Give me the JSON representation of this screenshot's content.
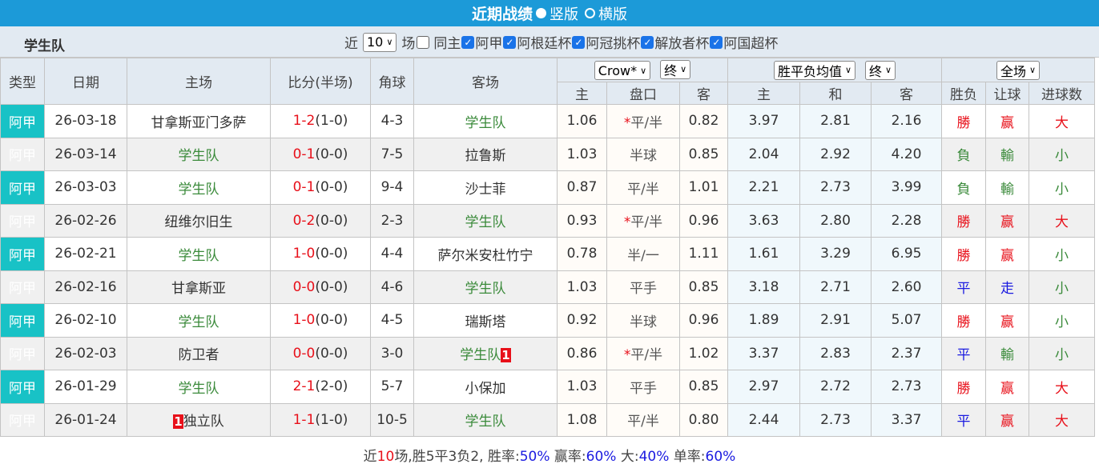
{
  "title": "近期战绩",
  "view_options": [
    "竖版",
    "横版"
  ],
  "view_selected": "竖版",
  "team": "学生队",
  "filter": {
    "near_label": "近",
    "count": "10",
    "games_label": "场",
    "same_home_label": "同主",
    "same_home_checked": false,
    "leagues": [
      {
        "label": "阿甲",
        "checked": true
      },
      {
        "label": "阿根廷杯",
        "checked": true
      },
      {
        "label": "阿冠挑杯",
        "checked": true
      },
      {
        "label": "解放者杯",
        "checked": true
      },
      {
        "label": "阿国超杯",
        "checked": true
      }
    ]
  },
  "headers": {
    "type": "类型",
    "date": "日期",
    "home": "主场",
    "score": "比分(半场)",
    "corner": "角球",
    "away": "客场",
    "ah_company": "Crow*",
    "ah_stage": "终",
    "ox_type": "胜平负均值",
    "ox_stage": "终",
    "result_scope": "全场",
    "ah_home": "主",
    "ah_line": "盘口",
    "ah_away": "客",
    "ox_home": "主",
    "ox_draw": "和",
    "ox_away": "客",
    "wl": "胜负",
    "handicap": "让球",
    "goals": "进球数"
  },
  "colors": {
    "title_bar": "#1c9ad8",
    "type_cell": "#18c2c6",
    "team_highlight": "#3a8a3a",
    "win": "#e8101a",
    "loss": "#3a8a3a",
    "draw": "#1a1ae0"
  },
  "rows": [
    {
      "type": "阿甲",
      "date": "26-03-18",
      "home": "甘拿斯亚门多萨",
      "home_badge": "",
      "score": "1-2",
      "ht": "(1-0)",
      "corner": "4-3",
      "away": "学生队",
      "away_badge": "",
      "team_side": "away",
      "ah_home": "1.06",
      "ah_star": "*",
      "ah_line": "平/半",
      "ah_away": "0.82",
      "ox_home": "3.97",
      "ox_draw": "2.81",
      "ox_away": "2.16",
      "wl": "勝",
      "wl_c": "red",
      "hc": "赢",
      "hc_c": "red",
      "goals": "大",
      "goals_c": "red"
    },
    {
      "type": "阿甲",
      "date": "26-03-14",
      "home": "学生队",
      "home_badge": "",
      "score": "0-1",
      "ht": "(0-0)",
      "corner": "7-5",
      "away": "拉鲁斯",
      "away_badge": "",
      "team_side": "home",
      "ah_home": "1.03",
      "ah_star": "",
      "ah_line": "半球",
      "ah_away": "0.85",
      "ox_home": "2.04",
      "ox_draw": "2.92",
      "ox_away": "4.20",
      "wl": "負",
      "wl_c": "green",
      "hc": "輸",
      "hc_c": "green",
      "goals": "小",
      "goals_c": "green"
    },
    {
      "type": "阿甲",
      "date": "26-03-03",
      "home": "学生队",
      "home_badge": "",
      "score": "0-1",
      "ht": "(0-0)",
      "corner": "9-4",
      "away": "沙士菲",
      "away_badge": "",
      "team_side": "home",
      "ah_home": "0.87",
      "ah_star": "",
      "ah_line": "平/半",
      "ah_away": "1.01",
      "ox_home": "2.21",
      "ox_draw": "2.73",
      "ox_away": "3.99",
      "wl": "負",
      "wl_c": "green",
      "hc": "輸",
      "hc_c": "green",
      "goals": "小",
      "goals_c": "green"
    },
    {
      "type": "阿甲",
      "date": "26-02-26",
      "home": "纽维尔旧生",
      "home_badge": "",
      "score": "0-2",
      "ht": "(0-0)",
      "corner": "2-3",
      "away": "学生队",
      "away_badge": "",
      "team_side": "away",
      "ah_home": "0.93",
      "ah_star": "*",
      "ah_line": "平/半",
      "ah_away": "0.96",
      "ox_home": "3.63",
      "ox_draw": "2.80",
      "ox_away": "2.28",
      "wl": "勝",
      "wl_c": "red",
      "hc": "赢",
      "hc_c": "red",
      "goals": "大",
      "goals_c": "red"
    },
    {
      "type": "阿甲",
      "date": "26-02-21",
      "home": "学生队",
      "home_badge": "",
      "score": "1-0",
      "ht": "(0-0)",
      "corner": "4-4",
      "away": "萨尔米安杜竹宁",
      "away_badge": "",
      "team_side": "home",
      "ah_home": "0.78",
      "ah_star": "",
      "ah_line": "半/一",
      "ah_away": "1.11",
      "ox_home": "1.61",
      "ox_draw": "3.29",
      "ox_away": "6.95",
      "wl": "勝",
      "wl_c": "red",
      "hc": "赢",
      "hc_c": "red",
      "goals": "小",
      "goals_c": "green"
    },
    {
      "type": "阿甲",
      "date": "26-02-16",
      "home": "甘拿斯亚",
      "home_badge": "",
      "score": "0-0",
      "ht": "(0-0)",
      "corner": "4-6",
      "away": "学生队",
      "away_badge": "",
      "team_side": "away",
      "ah_home": "1.03",
      "ah_star": "",
      "ah_line": "平手",
      "ah_away": "0.85",
      "ox_home": "3.18",
      "ox_draw": "2.71",
      "ox_away": "2.60",
      "wl": "平",
      "wl_c": "blue",
      "hc": "走",
      "hc_c": "blue",
      "goals": "小",
      "goals_c": "green"
    },
    {
      "type": "阿甲",
      "date": "26-02-10",
      "home": "学生队",
      "home_badge": "",
      "score": "1-0",
      "ht": "(0-0)",
      "corner": "4-5",
      "away": "瑞斯塔",
      "away_badge": "",
      "team_side": "home",
      "ah_home": "0.92",
      "ah_star": "",
      "ah_line": "半球",
      "ah_away": "0.96",
      "ox_home": "1.89",
      "ox_draw": "2.91",
      "ox_away": "5.07",
      "wl": "勝",
      "wl_c": "red",
      "hc": "赢",
      "hc_c": "red",
      "goals": "小",
      "goals_c": "green"
    },
    {
      "type": "阿甲",
      "date": "26-02-03",
      "home": "防卫者",
      "home_badge": "",
      "score": "0-0",
      "ht": "(0-0)",
      "corner": "3-0",
      "away": "学生队",
      "away_badge": "1",
      "team_side": "away",
      "ah_home": "0.86",
      "ah_star": "*",
      "ah_line": "平/半",
      "ah_away": "1.02",
      "ox_home": "3.37",
      "ox_draw": "2.83",
      "ox_away": "2.37",
      "wl": "平",
      "wl_c": "blue",
      "hc": "輸",
      "hc_c": "green",
      "goals": "小",
      "goals_c": "green"
    },
    {
      "type": "阿甲",
      "date": "26-01-29",
      "home": "学生队",
      "home_badge": "",
      "score": "2-1",
      "ht": "(2-0)",
      "corner": "5-7",
      "away": "小保加",
      "away_badge": "",
      "team_side": "home",
      "ah_home": "1.03",
      "ah_star": "",
      "ah_line": "平手",
      "ah_away": "0.85",
      "ox_home": "2.97",
      "ox_draw": "2.72",
      "ox_away": "2.73",
      "wl": "勝",
      "wl_c": "red",
      "hc": "赢",
      "hc_c": "red",
      "goals": "大",
      "goals_c": "red"
    },
    {
      "type": "阿甲",
      "date": "26-01-24",
      "home": "独立队",
      "home_badge": "1",
      "score": "1-1",
      "ht": "(1-0)",
      "corner": "10-5",
      "away": "学生队",
      "away_badge": "",
      "team_side": "away",
      "ah_home": "1.08",
      "ah_star": "",
      "ah_line": "平/半",
      "ah_away": "0.80",
      "ox_home": "2.44",
      "ox_draw": "2.73",
      "ox_away": "3.37",
      "wl": "平",
      "wl_c": "blue",
      "hc": "赢",
      "hc_c": "red",
      "goals": "大",
      "goals_c": "red"
    }
  ],
  "summary": {
    "p1": "近",
    "games": "10",
    "p2": "场,胜5平3负2, 胜率:",
    "win_rate": "50%",
    "p3": " 赢率:",
    "cover_rate": "60%",
    "p4": " 大:",
    "over_rate": "40%",
    "p5": " 单率:",
    "odd_rate": "60%"
  }
}
